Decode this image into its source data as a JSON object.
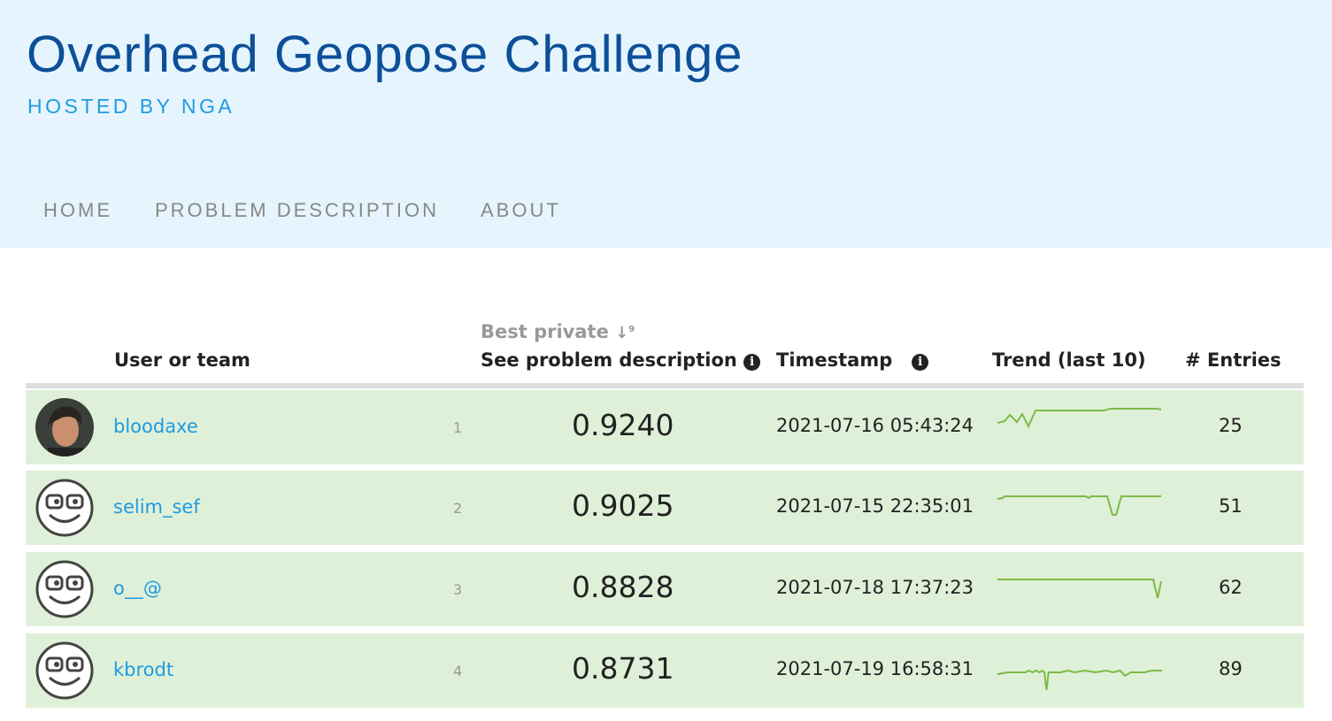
{
  "header": {
    "title": "Overhead Geopose Challenge",
    "subtitle": "HOSTED BY NGA"
  },
  "nav": [
    {
      "label": "HOME"
    },
    {
      "label": "PROBLEM DESCRIPTION"
    },
    {
      "label": "ABOUT"
    }
  ],
  "table": {
    "columns": {
      "user": "User or team",
      "score_top": "Best private",
      "sort_icon": "sort-numeric-icon",
      "score": "See problem description",
      "timestamp": "Timestamp",
      "trend": "Trend (last 10)",
      "entries": "# Entries"
    },
    "trend_color": "#7cbb48",
    "row_color": "#dff0d8",
    "rows": [
      {
        "rank": "1",
        "name": "bloodaxe",
        "score": "0.9240",
        "timestamp": "2021-07-16 05:43:24",
        "entries": "25",
        "avatar": "photo"
      },
      {
        "rank": "2",
        "name": "selim_sef",
        "score": "0.9025",
        "timestamp": "2021-07-15 22:35:01",
        "entries": "51",
        "avatar": "nerd-face-icon"
      },
      {
        "rank": "3",
        "name": "o__@",
        "score": "0.8828",
        "timestamp": "2021-07-18 17:37:23",
        "entries": "62",
        "avatar": "nerd-face-icon"
      },
      {
        "rank": "4",
        "name": "kbrodt",
        "score": "0.8731",
        "timestamp": "2021-07-19 16:58:31",
        "entries": "89",
        "avatar": "nerd-face-icon"
      }
    ]
  }
}
